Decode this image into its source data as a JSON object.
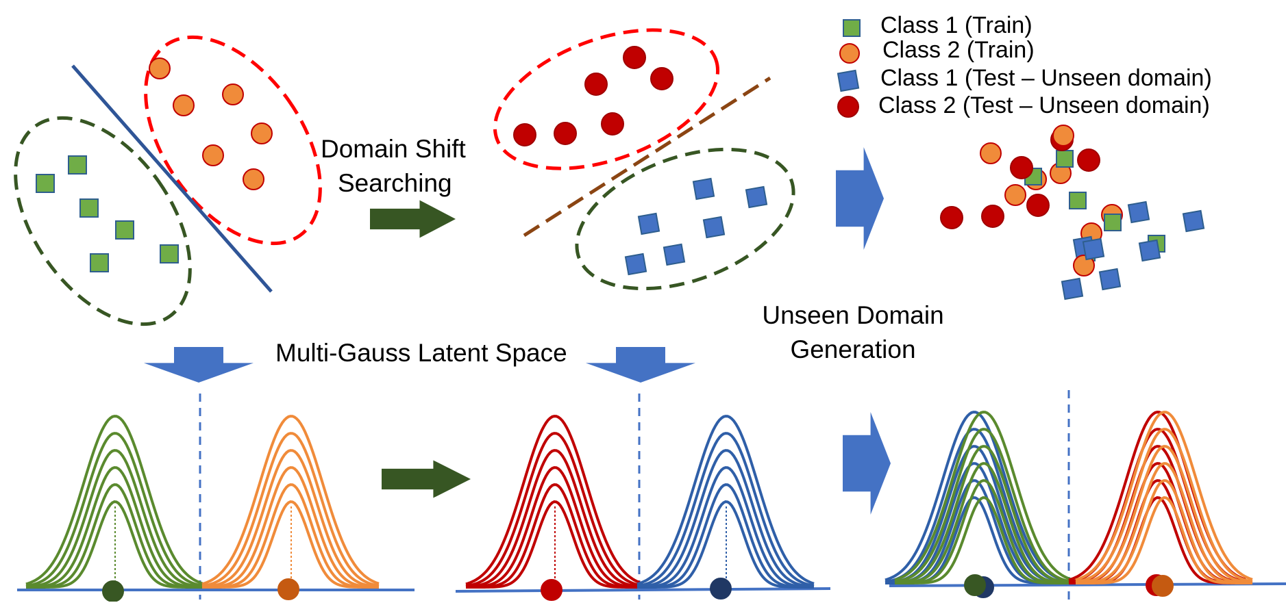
{
  "labels": {
    "domain_shift": "Domain Shift",
    "searching": "Searching",
    "multi_gauss": "Multi-Gauss Latent Space",
    "unseen_domain": "Unseen Domain",
    "generation": "Generation"
  },
  "legend": [
    {
      "label": "Class 1 (Train)",
      "marker": "square",
      "color": "#70ad47"
    },
    {
      "label": "Class 2 (Train)",
      "marker": "circle",
      "color": "#f08b3a"
    },
    {
      "label": "Class 1 (Test – Unseen domain)",
      "marker": "square",
      "color": "#4472c4"
    },
    {
      "label": "Class 2 (Test – Unseen domain)",
      "marker": "circle",
      "color": "#c00000"
    }
  ],
  "colors": {
    "train_class1": "#70ad47",
    "train_class2": "#f08b3a",
    "test_class1": "#4472c4",
    "test_class2": "#c00000",
    "arrow_green": "#375623",
    "arrow_blue": "#4472c4",
    "ellipse_green": "#375623",
    "ellipse_red": "#ff0000",
    "boundary_blue": "#2f5597",
    "boundary_brown": "#8b4513",
    "curve_green": "#5a8a2e",
    "curve_orange": "#f08b3a",
    "curve_red": "#c00000",
    "curve_blue": "#2f5fa8"
  }
}
